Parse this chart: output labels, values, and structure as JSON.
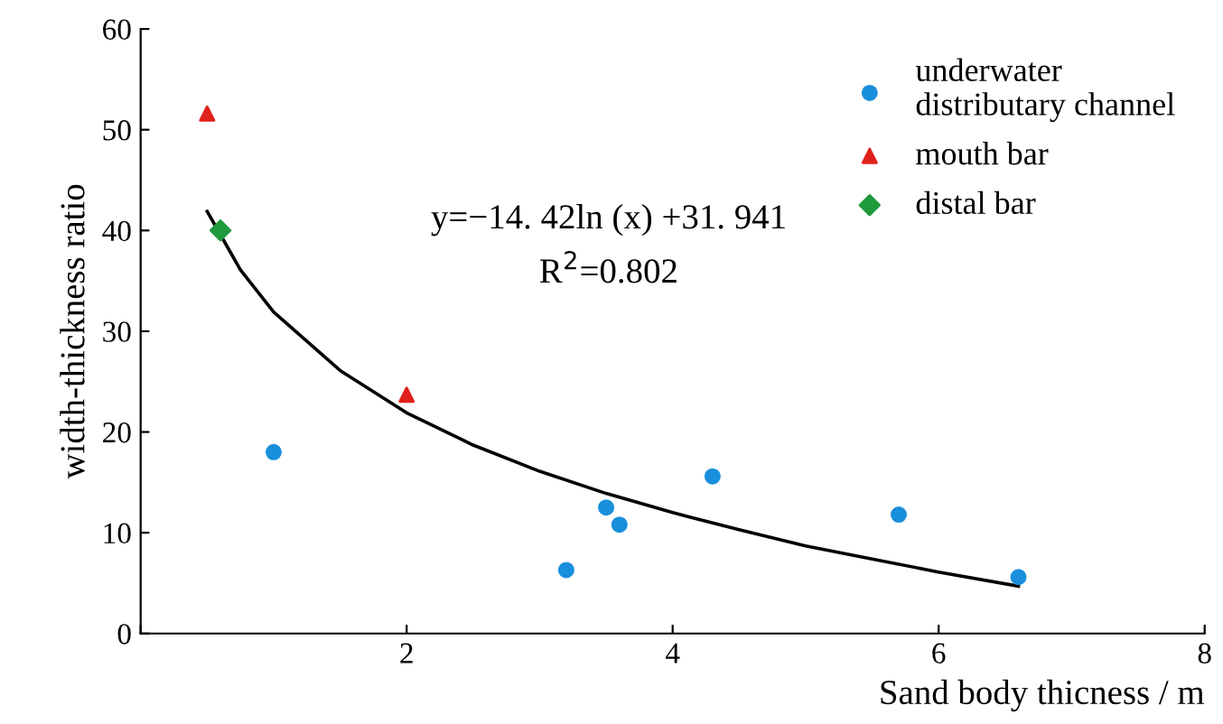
{
  "chart_data": {
    "type": "scatter",
    "xlabel": "Sand body thicness / m",
    "ylabel": "width-thickness ratio",
    "xlim": [
      0,
      8
    ],
    "xticks": [
      {
        "value": 0,
        "label": null
      },
      2,
      4,
      6,
      8
    ],
    "ylim": [
      0,
      60
    ],
    "yticks": [
      0,
      10,
      20,
      30,
      40,
      50,
      60
    ],
    "grid": false,
    "legend": "top right",
    "series": [
      {
        "name": "underwater\ndistributary channel",
        "color": "#1a8fdc",
        "marker": "circle",
        "x": [
          1.0,
          3.2,
          3.5,
          3.6,
          4.3,
          5.7,
          6.6
        ],
        "values": [
          18,
          6.3,
          12.5,
          10.8,
          15.6,
          11.8,
          5.6
        ]
      },
      {
        "name": "mouth bar",
        "color": "#e0201b",
        "marker": "triangle",
        "x": [
          0.5,
          2.0
        ],
        "values": [
          51.6,
          23.7
        ]
      },
      {
        "name": "distal bar",
        "color": "#1e9a3c",
        "marker": "diamond",
        "x": [
          0.6
        ],
        "values": [
          40
        ]
      },
      {
        "type": "line",
        "color": "#000000",
        "marker": "none",
        "line_style": "solid",
        "x": [
          0.5,
          0.75,
          1,
          1.5,
          2,
          2.5,
          3,
          3.5,
          4,
          4.5,
          5,
          5.5,
          6,
          6.6
        ],
        "values": [
          41.9,
          36.1,
          31.9,
          26.1,
          21.9,
          18.7,
          16.1,
          13.9,
          12.0,
          10.3,
          8.7,
          7.4,
          6.1,
          4.7
        ]
      }
    ],
    "annotations": [
      "y=−14. 42ln (x) +31. 941",
      "R$^{2}$=0.802"
    ]
  }
}
